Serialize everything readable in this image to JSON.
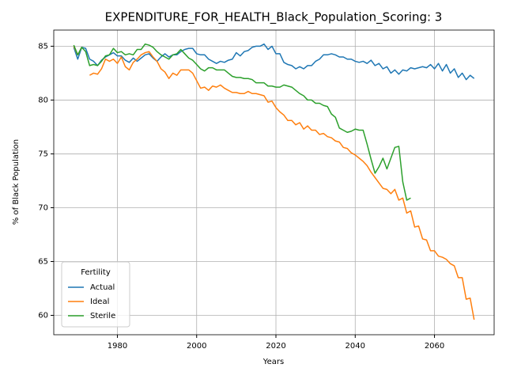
{
  "chart_data": {
    "type": "line",
    "title": "EXPENDITURE_FOR_HEALTH_Black_Population_Scoring: 3",
    "x_label": "Years",
    "y_label": "% of Black Population",
    "legend_title": "Fertility",
    "legend_loc": "lower left",
    "x": [
      1969,
      1970,
      1971,
      1972,
      1973,
      1974,
      1975,
      1976,
      1977,
      1978,
      1979,
      1980,
      1981,
      1982,
      1983,
      1984,
      1985,
      1986,
      1987,
      1988,
      1989,
      1990,
      1991,
      1992,
      1993,
      1994,
      1995,
      1996,
      1997,
      1998,
      1999,
      2000,
      2001,
      2002,
      2003,
      2004,
      2005,
      2006,
      2007,
      2008,
      2009,
      2010,
      2011,
      2012,
      2013,
      2014,
      2015,
      2016,
      2017,
      2018,
      2019,
      2020,
      2021,
      2022,
      2023,
      2024,
      2025,
      2026,
      2027,
      2028,
      2029,
      2030,
      2031,
      2032,
      2033,
      2034,
      2035,
      2036,
      2037,
      2038,
      2039,
      2040,
      2041,
      2042,
      2043,
      2044,
      2045,
      2046,
      2047,
      2048,
      2049,
      2050,
      2051,
      2052,
      2053,
      2054,
      2055,
      2056,
      2057,
      2058,
      2059,
      2060,
      2061,
      2062,
      2063,
      2064,
      2065,
      2066,
      2067,
      2068,
      2069,
      2070
    ],
    "series": [
      {
        "name": "Actual",
        "color": "#1f77b4",
        "values": [
          84.9,
          83.8,
          84.9,
          84.8,
          83.8,
          83.6,
          83.2,
          83.7,
          84.0,
          84.2,
          84.4,
          84.1,
          84.1,
          83.7,
          83.5,
          83.9,
          83.6,
          83.9,
          84.2,
          84.3,
          83.9,
          83.6,
          84.0,
          84.3,
          84.0,
          84.2,
          84.2,
          84.5,
          84.7,
          84.8,
          84.8,
          84.3,
          84.2,
          84.2,
          83.8,
          83.6,
          83.4,
          83.6,
          83.5,
          83.7,
          83.8,
          84.4,
          84.1,
          84.5,
          84.6,
          84.9,
          85.0,
          85.0,
          85.2,
          84.7,
          85.0,
          84.3,
          84.3,
          83.5,
          83.3,
          83.2,
          82.9,
          83.1,
          82.9,
          83.2,
          83.2,
          83.6,
          83.8,
          84.2,
          84.2,
          84.3,
          84.2,
          84.0,
          84.0,
          83.8,
          83.8,
          83.6,
          83.5,
          83.6,
          83.4,
          83.7,
          83.2,
          83.4,
          82.9,
          83.1,
          82.5,
          82.8,
          82.4,
          82.8,
          82.7,
          83.0,
          82.9,
          83.0,
          83.1,
          83.0,
          83.3,
          82.9,
          83.4,
          82.7,
          83.3,
          82.5,
          82.9,
          82.1,
          82.5,
          81.9,
          82.3,
          82.0
        ]
      },
      {
        "name": "Ideal",
        "color": "#ff7f0e",
        "values": [
          85.0,
          84.2,
          84.9,
          null,
          82.3,
          82.5,
          82.4,
          82.9,
          83.8,
          83.6,
          83.8,
          83.4,
          84.0,
          83.1,
          82.8,
          83.5,
          83.8,
          84.2,
          84.4,
          84.5,
          84.0,
          83.6,
          82.9,
          82.6,
          82.0,
          82.5,
          82.3,
          82.8,
          82.8,
          82.8,
          82.5,
          81.8,
          81.1,
          81.2,
          80.9,
          81.3,
          81.2,
          81.4,
          81.1,
          80.9,
          80.7,
          80.7,
          80.6,
          80.6,
          80.8,
          80.6,
          80.6,
          80.5,
          80.4,
          79.8,
          79.9,
          79.3,
          78.9,
          78.6,
          78.1,
          78.1,
          77.7,
          77.9,
          77.3,
          77.6,
          77.2,
          77.2,
          76.8,
          76.9,
          76.6,
          76.5,
          76.2,
          76.1,
          75.6,
          75.5,
          75.1,
          74.9,
          74.6,
          74.3,
          73.9,
          73.3,
          72.8,
          72.3,
          71.8,
          71.7,
          71.3,
          71.7,
          70.7,
          70.9,
          69.5,
          69.7,
          68.2,
          68.3,
          67.1,
          67.0,
          66.0,
          66.0,
          65.5,
          65.4,
          65.2,
          64.8,
          64.6,
          63.5,
          63.5,
          61.5,
          61.6,
          59.6
        ]
      },
      {
        "name": "Sterile",
        "color": "#2ca02c",
        "values": [
          85.1,
          84.2,
          84.9,
          84.5,
          83.2,
          83.3,
          83.2,
          83.6,
          84.1,
          84.2,
          84.8,
          84.4,
          84.5,
          84.2,
          84.3,
          84.2,
          84.7,
          84.7,
          85.2,
          85.1,
          84.9,
          84.5,
          84.2,
          84.0,
          83.8,
          84.2,
          84.3,
          84.7,
          84.3,
          83.9,
          83.7,
          83.3,
          82.9,
          82.7,
          83.0,
          83.0,
          82.8,
          82.8,
          82.8,
          82.5,
          82.2,
          82.1,
          82.1,
          82.0,
          82.0,
          81.9,
          81.6,
          81.6,
          81.6,
          81.3,
          81.3,
          81.2,
          81.2,
          81.4,
          81.3,
          81.2,
          80.9,
          80.6,
          80.4,
          80.0,
          80.0,
          79.7,
          79.7,
          79.5,
          79.4,
          78.7,
          78.4,
          77.4,
          77.2,
          77.0,
          77.1,
          77.3,
          77.2,
          77.2,
          75.9,
          74.5,
          73.2,
          73.8,
          74.6,
          73.6,
          74.6,
          75.6,
          75.7,
          72.4,
          70.7,
          70.9,
          null,
          null,
          null,
          null,
          null,
          null,
          null,
          null,
          null,
          null,
          null,
          null,
          null,
          null,
          null,
          null
        ]
      }
    ],
    "xlim": [
      1963.95,
      2075.05
    ],
    "xticks": [
      1980,
      2000,
      2020,
      2040,
      2060
    ],
    "ylim": [
      58.2,
      86.5
    ],
    "yticks": [
      60,
      65,
      70,
      75,
      80,
      85
    ],
    "grid": true
  }
}
